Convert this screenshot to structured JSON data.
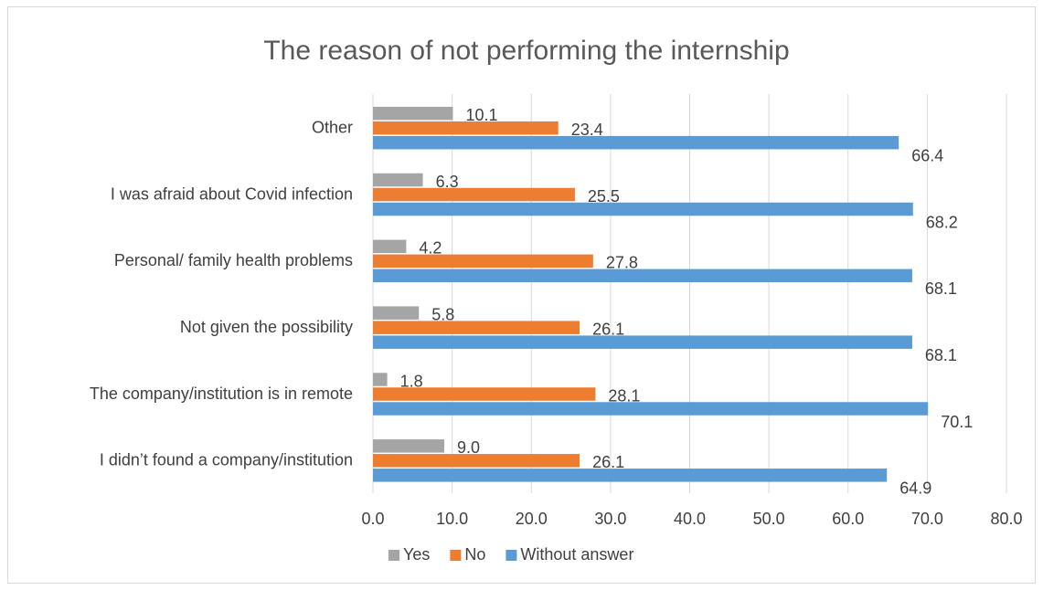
{
  "chart_data": {
    "type": "bar",
    "orientation": "horizontal",
    "title": "The reason of not performing the internship",
    "categories": [
      "Other",
      "I was afraid about Covid infection",
      "Personal/ family health problems",
      "Not given the possibility",
      "The company/institution is in remote",
      "I didn’t found a company/institution"
    ],
    "series": [
      {
        "name": "Yes",
        "color": "#a5a5a5",
        "values": [
          10.1,
          6.3,
          4.2,
          5.8,
          1.8,
          9.0
        ]
      },
      {
        "name": "No",
        "color": "#ed7d31",
        "values": [
          23.4,
          25.5,
          27.8,
          26.1,
          28.1,
          26.1
        ]
      },
      {
        "name": "Without answer",
        "color": "#5b9bd5",
        "values": [
          66.4,
          68.2,
          68.1,
          68.1,
          70.1,
          64.9
        ]
      }
    ],
    "xlim": [
      0,
      80
    ],
    "xticks": [
      "0.0",
      "10.0",
      "20.0",
      "30.0",
      "40.0",
      "50.0",
      "60.0",
      "70.0",
      "80.0"
    ],
    "grid": true,
    "legend_position": "bottom",
    "value_format_decimals": 1
  }
}
